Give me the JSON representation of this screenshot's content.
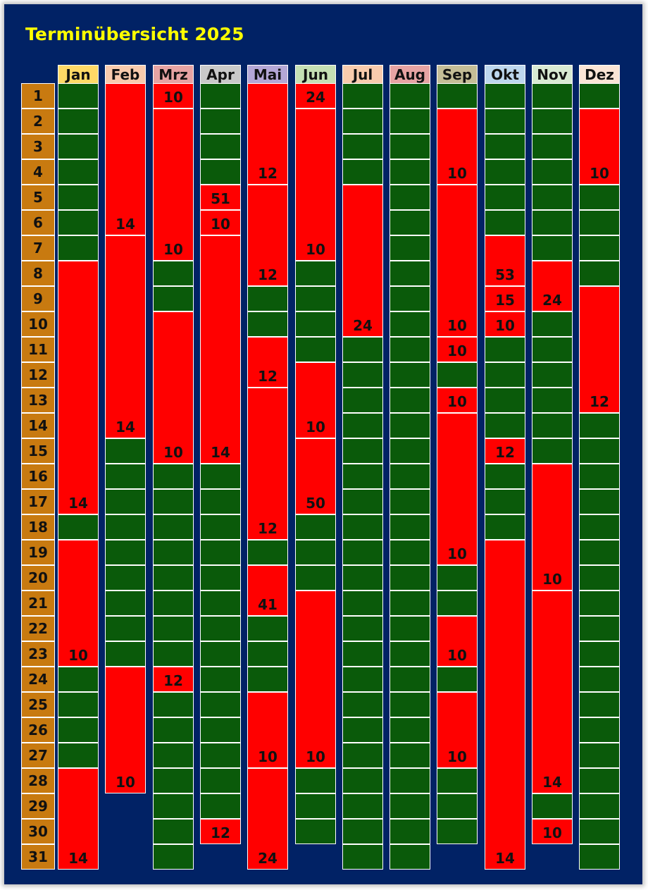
{
  "title": "Terminübersicht 2025",
  "colors": {
    "background": "#012265",
    "free": "#0a5a0a",
    "busy": "#ff0000",
    "day": "#c87a10",
    "title": "#ffff00"
  },
  "days": [
    "1",
    "2",
    "3",
    "4",
    "5",
    "6",
    "7",
    "8",
    "9",
    "10",
    "11",
    "12",
    "13",
    "14",
    "15",
    "16",
    "17",
    "18",
    "19",
    "20",
    "21",
    "22",
    "23",
    "24",
    "25",
    "26",
    "27",
    "28",
    "29",
    "30",
    "31"
  ],
  "months": [
    {
      "name": "Jan",
      "color": "#ffd966",
      "days": 31,
      "busy": [
        [
          8,
          17,
          "14"
        ],
        [
          19,
          23,
          "10"
        ],
        [
          28,
          31,
          "14"
        ]
      ]
    },
    {
      "name": "Feb",
      "color": "#f8cbad",
      "days": 28,
      "busy": [
        [
          1,
          6,
          "14"
        ],
        [
          7,
          14,
          "14"
        ],
        [
          24,
          28,
          "10"
        ]
      ]
    },
    {
      "name": "Mrz",
      "color": "#e6a3a3",
      "days": 31,
      "busy": [
        [
          1,
          1,
          "10"
        ],
        [
          2,
          7,
          "10"
        ],
        [
          10,
          15,
          "10"
        ],
        [
          24,
          24,
          "12"
        ]
      ]
    },
    {
      "name": "Apr",
      "color": "#c9c9c9",
      "days": 30,
      "busy": [
        [
          5,
          5,
          "51"
        ],
        [
          6,
          6,
          "10"
        ],
        [
          7,
          15,
          "14"
        ],
        [
          30,
          30,
          "12"
        ]
      ]
    },
    {
      "name": "Mai",
      "color": "#b4a7d6",
      "days": 31,
      "busy": [
        [
          1,
          4,
          "12"
        ],
        [
          5,
          8,
          "12"
        ],
        [
          11,
          12,
          "12"
        ],
        [
          13,
          18,
          "12"
        ],
        [
          20,
          21,
          "41"
        ],
        [
          25,
          27,
          "10"
        ],
        [
          28,
          31,
          "24"
        ]
      ]
    },
    {
      "name": "Jun",
      "color": "#c5e0b4",
      "days": 30,
      "busy": [
        [
          1,
          1,
          "24"
        ],
        [
          2,
          7,
          "10"
        ],
        [
          12,
          14,
          "10"
        ],
        [
          15,
          17,
          "50"
        ],
        [
          21,
          27,
          "10"
        ]
      ]
    },
    {
      "name": "Jul",
      "color": "#f8cbad",
      "days": 31,
      "busy": [
        [
          5,
          10,
          "24"
        ]
      ]
    },
    {
      "name": "Aug",
      "color": "#e6a3a3",
      "days": 31,
      "busy": []
    },
    {
      "name": "Sep",
      "color": "#c4bd97",
      "days": 30,
      "busy": [
        [
          2,
          4,
          "10"
        ],
        [
          5,
          10,
          "10"
        ],
        [
          11,
          11,
          "10"
        ],
        [
          13,
          13,
          "10"
        ],
        [
          14,
          19,
          "10"
        ],
        [
          22,
          23,
          "10"
        ],
        [
          25,
          27,
          "10"
        ]
      ]
    },
    {
      "name": "Okt",
      "color": "#bdd7ee",
      "days": 31,
      "busy": [
        [
          7,
          8,
          "53"
        ],
        [
          9,
          9,
          "15"
        ],
        [
          10,
          10,
          "10"
        ],
        [
          15,
          15,
          "12"
        ],
        [
          19,
          31,
          "14"
        ]
      ]
    },
    {
      "name": "Nov",
      "color": "#d9ead3",
      "days": 30,
      "busy": [
        [
          8,
          9,
          "24"
        ],
        [
          16,
          20,
          "10"
        ],
        [
          21,
          28,
          "14"
        ],
        [
          30,
          30,
          "10"
        ]
      ]
    },
    {
      "name": "Dez",
      "color": "#fbe5d6",
      "days": 31,
      "busy": [
        [
          2,
          4,
          "10"
        ],
        [
          9,
          13,
          "12"
        ]
      ]
    }
  ]
}
